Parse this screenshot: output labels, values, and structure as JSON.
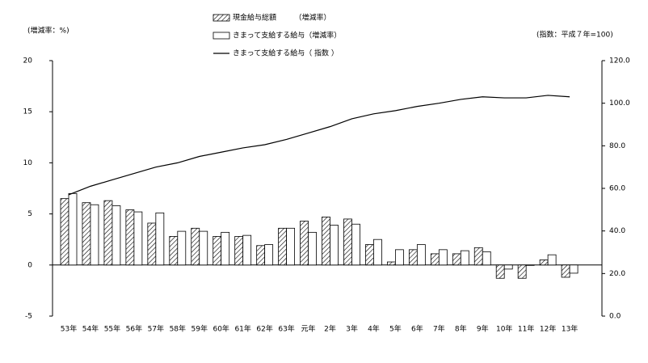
{
  "chart_data": {
    "type": "bar-line",
    "ylabel": "(増減率：%)",
    "y2label": "(指数：平成７年=100)",
    "categories": [
      "53年",
      "54年",
      "55年",
      "56年",
      "57年",
      "58年",
      "59年",
      "60年",
      "61年",
      "62年",
      "63年",
      "元年",
      "2年",
      "3年",
      "4年",
      "5年",
      "6年",
      "7年",
      "8年",
      "9年",
      "10年",
      "11年",
      "12年",
      "13年"
    ],
    "series": [
      {
        "name": "現金給与総額　　　（増減率）",
        "type": "bar",
        "color": "#000000",
        "pattern": "hatch",
        "values": [
          6.5,
          6.1,
          6.3,
          5.4,
          4.1,
          2.8,
          3.6,
          2.8,
          2.8,
          1.9,
          3.6,
          4.3,
          4.7,
          4.5,
          2.0,
          0.3,
          1.5,
          1.1,
          1.1,
          1.7,
          -1.3,
          -1.3,
          0.5,
          -1.2
        ]
      },
      {
        "name": "きまって支給する給与（増減率）",
        "type": "bar",
        "color": "#000000",
        "pattern": "none",
        "values": [
          7.0,
          5.9,
          5.8,
          5.2,
          5.1,
          3.3,
          3.3,
          3.2,
          2.9,
          2.0,
          3.6,
          3.2,
          3.9,
          4.0,
          2.5,
          1.5,
          2.0,
          1.5,
          1.4,
          1.3,
          -0.4,
          0.0,
          1.0,
          -0.8
        ]
      },
      {
        "name": "きまって支給する給与（ 指数 ）",
        "type": "line",
        "axis": "y2",
        "color": "#000000",
        "values": [
          57,
          61,
          64,
          67,
          70,
          72,
          75,
          77,
          79,
          80.5,
          83,
          86,
          89,
          92.7,
          95,
          96.5,
          98.5,
          100,
          101.8,
          103,
          102.5,
          102.5,
          103.7,
          103
        ]
      }
    ],
    "ylim": [
      -5,
      20
    ],
    "yticks": [
      -5,
      0,
      5,
      10,
      15,
      20
    ],
    "y2lim": [
      0,
      120
    ],
    "y2ticks": [
      {
        "value": 0,
        "label": "0.0"
      },
      {
        "value": 20,
        "label": "20.0"
      },
      {
        "value": 40,
        "label": "40.0"
      },
      {
        "value": 60,
        "label": "60.0"
      },
      {
        "value": 80,
        "label": "80.0"
      },
      {
        "value": 100,
        "label": "100.0"
      },
      {
        "value": 120,
        "label": "120.0"
      }
    ],
    "grid": false
  }
}
